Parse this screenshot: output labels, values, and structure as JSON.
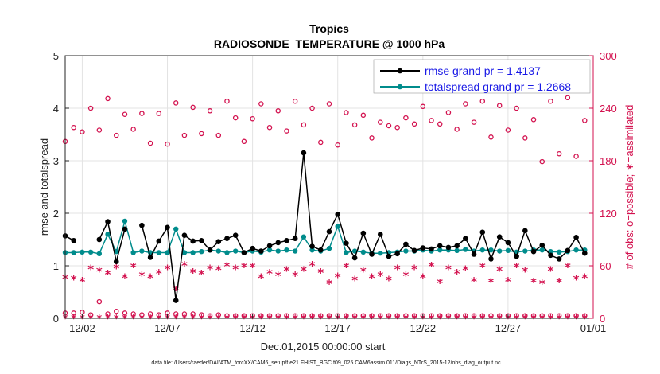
{
  "chart_data": {
    "type": "line",
    "title": "Tropics",
    "subtitle": "RADIOSONDE_TEMPERATURE @ 1000 hPa",
    "xlabel": "Dec.01,2015 00:00:00 start",
    "ylabel_left": "rmse and totalspread",
    "ylabel_right": "# of obs: o=possible; ∗=assimilated",
    "footer": "data file: /Users/raeder/DAI/ATM_forcXX/CAM6_setup/f.e21.FHIST_BGC.f09_025.CAM6assim.011/Diags_NTrS_2015-12/obs_diag_output.nc",
    "x_start_day": 1,
    "x_range": [
      1,
      32
    ],
    "x_ticks": [
      2,
      7,
      12,
      17,
      22,
      27,
      32
    ],
    "x_tick_labels": [
      "12/02",
      "12/07",
      "12/12",
      "12/17",
      "12/22",
      "12/27",
      "01/01"
    ],
    "ylim_left": [
      0,
      5
    ],
    "y_ticks_left": [
      0,
      1,
      2,
      3,
      4,
      5
    ],
    "ylim_right": [
      0,
      300
    ],
    "y_ticks_right": [
      0,
      60,
      120,
      180,
      240,
      300
    ],
    "legend": [
      "rmse grand pr = 1.4137",
      "totalspread grand pr = 1.2668"
    ],
    "x": [
      1,
      1.5,
      2,
      2.5,
      3,
      3.5,
      4,
      4.5,
      5,
      5.5,
      6,
      6.5,
      7,
      7.5,
      8,
      8.5,
      9,
      9.5,
      10,
      10.5,
      11,
      11.5,
      12,
      12.5,
      13,
      13.5,
      14,
      14.5,
      15,
      15.5,
      16,
      16.5,
      17,
      17.5,
      18,
      18.5,
      19,
      19.5,
      20,
      20.5,
      21,
      21.5,
      22,
      22.5,
      23,
      23.5,
      24,
      24.5,
      25,
      25.5,
      26,
      26.5,
      27,
      27.5,
      28,
      28.5,
      29,
      29.5,
      30,
      30.5,
      31,
      31.5
    ],
    "series": [
      {
        "name": "rmse",
        "color": "#000000",
        "values": [
          1.57,
          1.48,
          null,
          null,
          1.5,
          1.84,
          1.08,
          1.7,
          null,
          1.77,
          1.16,
          1.47,
          1.73,
          0.34,
          1.58,
          1.47,
          1.48,
          1.3,
          1.46,
          1.52,
          1.58,
          1.25,
          1.33,
          1.28,
          1.38,
          1.44,
          1.48,
          1.52,
          3.15,
          1.37,
          1.3,
          1.65,
          1.98,
          1.43,
          1.15,
          1.62,
          1.22,
          1.6,
          1.18,
          1.23,
          1.41,
          1.29,
          1.34,
          1.32,
          1.38,
          1.35,
          1.38,
          1.52,
          1.22,
          1.64,
          1.13,
          1.55,
          1.44,
          1.18,
          1.67,
          1.27,
          1.39,
          1.2,
          1.13,
          1.29,
          1.54,
          1.24
        ]
      },
      {
        "name": "totalspread",
        "color": "#008c8c",
        "values": [
          1.25,
          1.25,
          1.26,
          1.26,
          1.23,
          1.6,
          1.27,
          1.85,
          1.25,
          1.28,
          1.25,
          1.25,
          1.25,
          1.7,
          1.25,
          1.25,
          1.27,
          1.3,
          1.28,
          1.25,
          1.28,
          1.25,
          1.28,
          1.26,
          1.3,
          1.28,
          1.3,
          1.28,
          1.55,
          1.3,
          1.28,
          1.33,
          1.75,
          1.25,
          1.28,
          1.26,
          1.24,
          1.24,
          1.25,
          1.26,
          1.28,
          1.28,
          1.3,
          1.28,
          1.3,
          1.3,
          1.29,
          1.31,
          1.28,
          1.3,
          1.3,
          1.28,
          1.29,
          1.26,
          1.28,
          1.3,
          1.3,
          1.27,
          1.26,
          1.27,
          1.3,
          1.3
        ]
      },
      {
        "name": "obs_possible",
        "axis": "right",
        "color": "#d3124f",
        "values": [
          202,
          218,
          213,
          240,
          215,
          251,
          209,
          233,
          216,
          234,
          200,
          234,
          199,
          246,
          209,
          241,
          211,
          237,
          209,
          248,
          229,
          202,
          228,
          245,
          218,
          237,
          214,
          248,
          221,
          240,
          201,
          245,
          198,
          235,
          221,
          232,
          206,
          224,
          220,
          218,
          229,
          222,
          242,
          226,
          222,
          235,
          216,
          245,
          224,
          248,
          207,
          243,
          215,
          240,
          206,
          227,
          179,
          248,
          188,
          252,
          185,
          226
        ]
      },
      {
        "name": "obs_assimilated",
        "axis": "right",
        "color": "#d3124f",
        "values": [
          45,
          44,
          42,
          56,
          53,
          50,
          57,
          46,
          58,
          48,
          46,
          51,
          56,
          32,
          60,
          52,
          50,
          56,
          55,
          59,
          56,
          58,
          58,
          46,
          51,
          48,
          54,
          48,
          54,
          60,
          52,
          39,
          47,
          58,
          43,
          53,
          46,
          48,
          43,
          56,
          48,
          56,
          46,
          59,
          40,
          56,
          51,
          55,
          42,
          58,
          41,
          54,
          42,
          58,
          53,
          41,
          39,
          54,
          41,
          58,
          44,
          46
        ]
      },
      {
        "name": "possible_low",
        "axis": "right",
        "color": "#d3124f",
        "values": [
          6,
          6,
          7,
          4,
          19,
          5,
          8,
          6,
          5,
          4,
          5,
          4,
          6,
          5,
          5,
          5,
          4,
          3,
          4,
          3,
          3,
          3,
          3,
          3,
          3,
          3,
          3,
          3,
          3,
          3,
          3,
          3,
          3,
          3,
          3,
          3,
          3,
          3,
          3,
          3,
          3,
          3,
          3,
          3,
          3,
          3,
          3,
          3,
          3,
          3,
          3,
          3,
          3,
          3,
          3,
          3,
          3,
          3,
          3,
          3,
          3,
          3
        ]
      },
      {
        "name": "assimilated_low",
        "axis": "right",
        "color": "#d3124f",
        "values": [
          1,
          1,
          1,
          1,
          1,
          1,
          1,
          1,
          1,
          1,
          1,
          1,
          1,
          1,
          1,
          1,
          1,
          1,
          1,
          1,
          1,
          1,
          1,
          1,
          1,
          1,
          1,
          1,
          1,
          1,
          1,
          1,
          1,
          1,
          1,
          1,
          1,
          1,
          1,
          1,
          1,
          1,
          1,
          1,
          1,
          1,
          1,
          1,
          1,
          1,
          1,
          1,
          1,
          1,
          1,
          1,
          1,
          1,
          1,
          1,
          1,
          1
        ]
      }
    ]
  }
}
